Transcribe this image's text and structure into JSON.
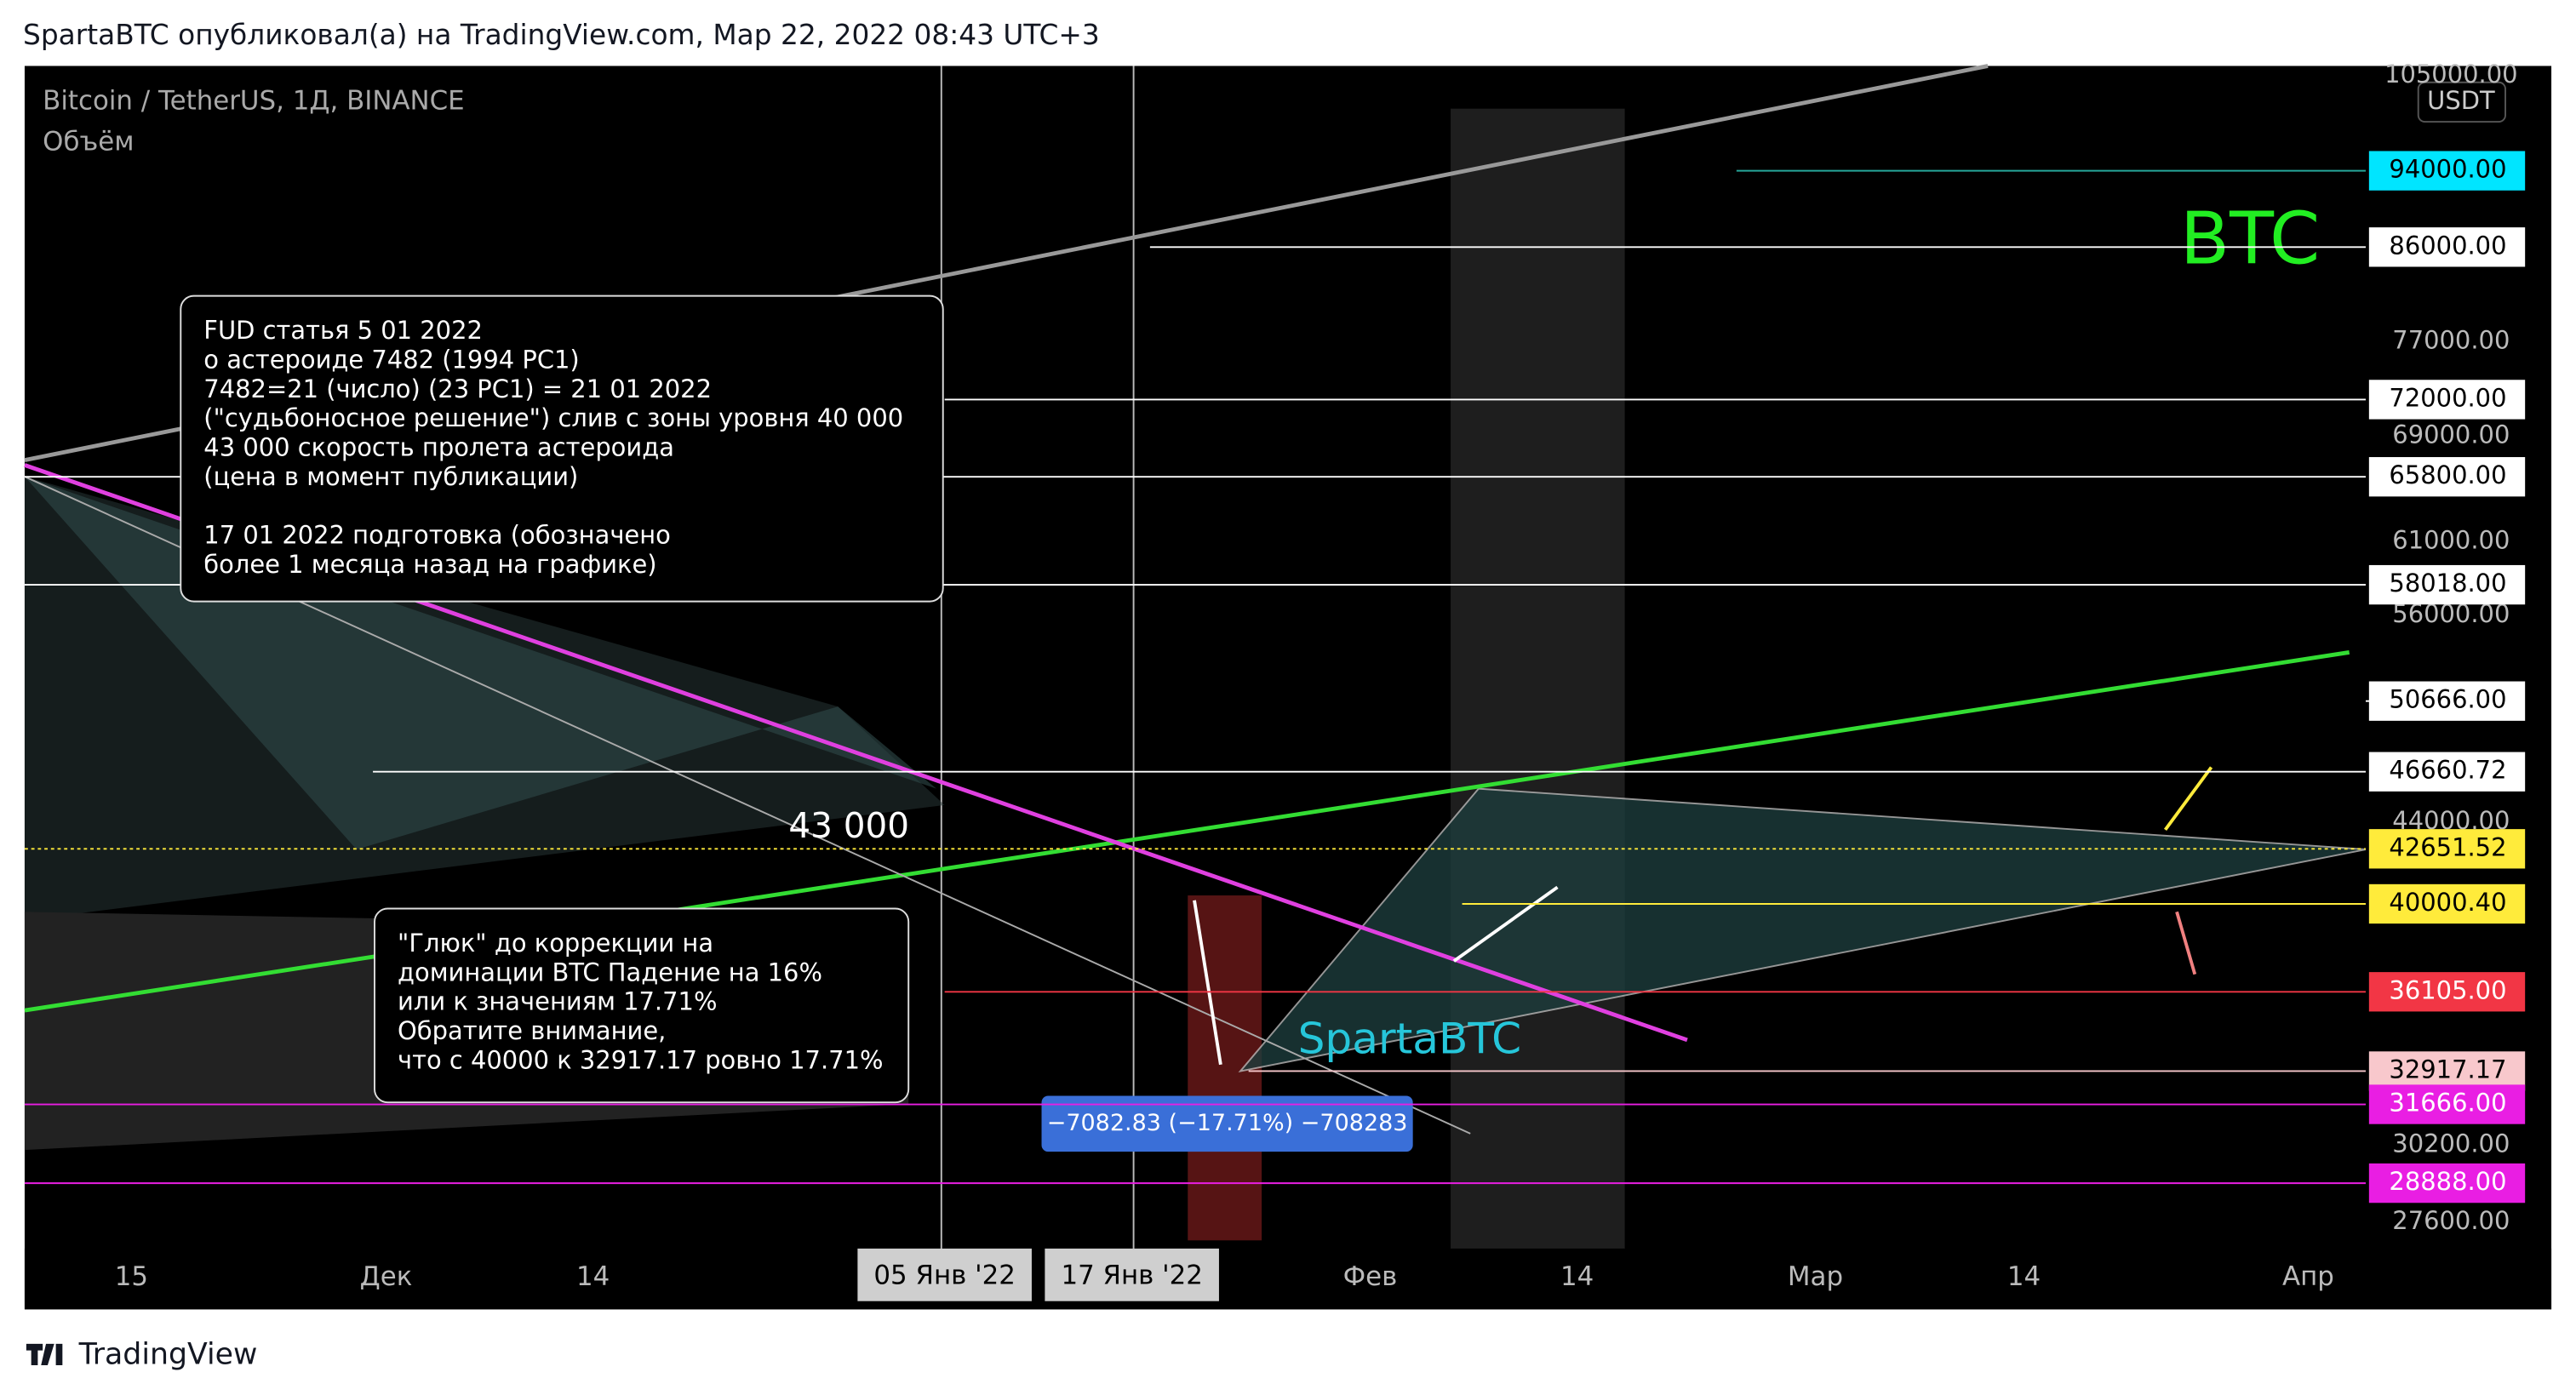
{
  "header": {
    "publisher": "SpartaBTC опубликовал(а) на TradingView.com, Мар 22, 2022 08:43 UTC+3"
  },
  "chart": {
    "symbol": "Bitcoin / TetherUS, 1Д, BINANCE",
    "volume_label": "Объём",
    "currency": "USDT",
    "log_scale": true,
    "price_ticks": [
      {
        "value": 105000,
        "label": "105000.00"
      },
      {
        "value": 77000,
        "label": "77000.00"
      },
      {
        "value": 69000,
        "label": "69000.00"
      },
      {
        "value": 61000,
        "label": "61000.00"
      },
      {
        "value": 56000,
        "label": "56000.00"
      },
      {
        "value": 44000,
        "label": "44000.00"
      },
      {
        "value": 30200,
        "label": "30200.00"
      },
      {
        "value": 27600,
        "label": "27600.00"
      }
    ],
    "levels": [
      {
        "value": 94000,
        "label": "94000.00",
        "color": "#00e5ff"
      },
      {
        "value": 86000,
        "label": "86000.00",
        "color": "#ffffff"
      },
      {
        "value": 72000,
        "label": "72000.00",
        "color": "#ffffff"
      },
      {
        "value": 65800,
        "label": "65800.00",
        "color": "#ffffff"
      },
      {
        "value": 58018,
        "label": "58018.00",
        "color": "#ffffff"
      },
      {
        "value": 50666,
        "label": "50666.00",
        "color": "#ffffff"
      },
      {
        "value": 46660.72,
        "label": "46660.72",
        "color": "#ffffff"
      },
      {
        "value": 42651.52,
        "label": "42651.52",
        "color": "#ffeb3b"
      },
      {
        "value": 40000.4,
        "label": "40000.40",
        "color": "#ffeb3b"
      },
      {
        "value": 36105,
        "label": "36105.00",
        "color": "#f23645"
      },
      {
        "value": 32917.17,
        "label": "32917.17",
        "color": "#f8c8cc"
      },
      {
        "value": 31666,
        "label": "31666.00",
        "color": "#e91ee3"
      },
      {
        "value": 28888,
        "label": "28888.00",
        "color": "#e91ee3"
      }
    ],
    "time_labels": [
      "15",
      "Дек",
      "14",
      "Фев",
      "14",
      "Мар",
      "14",
      "Апр"
    ],
    "crosshair_dates": [
      "05 Янв '22",
      "17 Янв '22"
    ],
    "annotations": [
      {
        "lines": [
          "FUD статья 5 01 2022",
          "о астероиде 7482 (1994 PC1)",
          "7482=21 (число) (23 PC1) = 21 01 2022",
          "(\"судьбоносное решение\") слив с зоны уровня 40 000",
          "43 000 скорость пролета астероида",
          "(цена в момент публикации)",
          "",
          "17 01 2022 подготовка (обозначено",
          "более 1 месяца назад на графике)"
        ]
      },
      {
        "lines": [
          "\"Глюк\" до коррекции на",
          "доминации BTC Падение на 16%",
          "или к значениям 17.71%",
          "Обратите внимание,",
          "что с 40000 к 32917.17 ровно 17.71%"
        ]
      }
    ],
    "label_43000": "43 000",
    "label_sparta": "SpartaBTC",
    "label_btc": "BTC",
    "measure": "−7082.83 (−17.71%) −708283"
  },
  "footer": {
    "brand": "TradingView"
  }
}
